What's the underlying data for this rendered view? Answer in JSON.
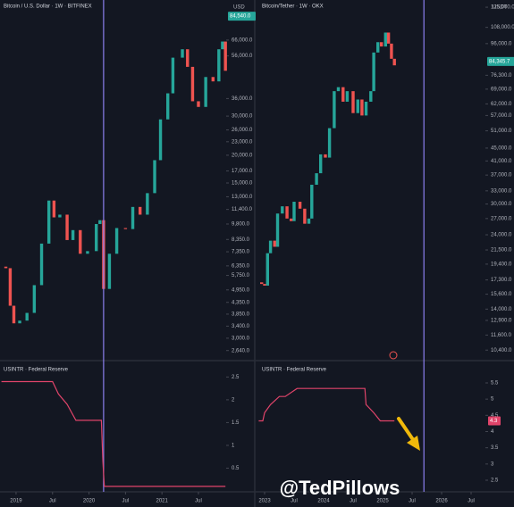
{
  "watermark": "@TedPillows",
  "chart_data": [
    {
      "type": "candlestick",
      "title": "Bitcoin / U.S. Dollar · 1W · BITFINEX",
      "currency": "USD",
      "x": [
        2018.8,
        2018.86,
        2018.92,
        2018.97,
        2019.05,
        2019.15,
        2019.25,
        2019.35,
        2019.45,
        2019.52,
        2019.6,
        2019.7,
        2019.78,
        2019.88,
        2019.98,
        2020.1,
        2020.15,
        2020.2,
        2020.28,
        2020.38,
        2020.5,
        2020.6,
        2020.7,
        2020.8,
        2020.9,
        2020.98,
        2021.08,
        2021.15,
        2021.28,
        2021.35,
        2021.42,
        2021.5,
        2021.6,
        2021.7,
        2021.78,
        2021.83,
        2021.87
      ],
      "values": [
        6300,
        6200,
        4200,
        3500,
        3600,
        3900,
        5200,
        8000,
        12500,
        10500,
        10800,
        8300,
        9200,
        7200,
        7400,
        9800,
        10200,
        5000,
        7200,
        9400,
        9300,
        11700,
        10800,
        13500,
        19000,
        29000,
        38000,
        55000,
        60000,
        50000,
        35000,
        33000,
        45000,
        43000,
        60000,
        65000,
        48000
      ],
      "up_color": "#26a69a",
      "down_color": "#ef5350",
      "log_scale": true,
      "xlim": [
        2018.78,
        2021.88
      ],
      "ylim": [
        2400,
        100000
      ],
      "yticks": [
        {
          "value": 66000,
          "label": "66,000.0"
        },
        {
          "value": 56000,
          "label": "56,000.0"
        },
        {
          "value": 36000,
          "label": "36,000.0"
        },
        {
          "value": 30000,
          "label": "30,000.0"
        },
        {
          "value": 26000,
          "label": "26,000.0"
        },
        {
          "value": 23000,
          "label": "23,000.0"
        },
        {
          "value": 20000,
          "label": "20,000.0"
        },
        {
          "value": 17000,
          "label": "17,000.0"
        },
        {
          "value": 15000,
          "label": "15,000.0"
        },
        {
          "value": 13000,
          "label": "13,000.0"
        },
        {
          "value": 11400,
          "label": "11,400.0"
        },
        {
          "value": 9800,
          "label": "9,800.0"
        },
        {
          "value": 8350,
          "label": "8,350.0"
        },
        {
          "value": 7350,
          "label": "7,350.0"
        },
        {
          "value": 6350,
          "label": "6,350.0"
        },
        {
          "value": 5750,
          "label": "5,750.0"
        },
        {
          "value": 4950,
          "label": "4,950.0"
        },
        {
          "value": 4350,
          "label": "4,350.0"
        },
        {
          "value": 3850,
          "label": "3,850.0"
        },
        {
          "value": 3400,
          "label": "3,400.0"
        },
        {
          "value": 3000,
          "label": "3,000.0"
        },
        {
          "value": 2640,
          "label": "2,640.0"
        }
      ],
      "last_price": 84540,
      "last_price_label": "84,540.0",
      "vline_x": 2020.2,
      "vline_color": "#8c80f0"
    },
    {
      "type": "line",
      "title": "USINTR · Federal Reserve",
      "x": [
        2018.8,
        2019.5,
        2019.58,
        2019.7,
        2019.82,
        2020.17,
        2020.19,
        2020.21,
        2021.87
      ],
      "values": [
        2.4,
        2.4,
        2.13,
        1.9,
        1.55,
        1.55,
        0.65,
        0.1,
        0.1
      ],
      "color": "#e0446a",
      "xlim": [
        2018.78,
        2021.88
      ],
      "ylim": [
        0,
        2.84
      ],
      "yticks": [
        0.5,
        1,
        1.5,
        2,
        2.5
      ],
      "xticks": [
        2019,
        {
          "value": 2019.5,
          "label": "Jul"
        },
        2020,
        {
          "value": 2020.5,
          "label": "Jul"
        },
        2021,
        {
          "value": 2021.5,
          "label": "Jul"
        }
      ]
    },
    {
      "type": "candlestick",
      "title": "Bitcoin/Tether · 1W · OKX",
      "currency": "USDT",
      "x": [
        2022.9,
        2022.95,
        2023.0,
        2023.05,
        2023.1,
        2023.17,
        2023.22,
        2023.3,
        2023.38,
        2023.45,
        2023.5,
        2023.6,
        2023.68,
        2023.75,
        2023.8,
        2023.88,
        2023.95,
        2024.03,
        2024.1,
        2024.18,
        2024.25,
        2024.33,
        2024.4,
        2024.5,
        2024.58,
        2024.65,
        2024.72,
        2024.8,
        2024.85,
        2024.92,
        2024.98,
        2025.05,
        2025.1,
        2025.15,
        2025.2
      ],
      "values": [
        17000,
        16800,
        16600,
        21000,
        23000,
        22000,
        28000,
        29500,
        27000,
        26500,
        30500,
        29000,
        26000,
        27000,
        34500,
        37500,
        43000,
        42000,
        52000,
        68000,
        70000,
        63000,
        68000,
        58000,
        64000,
        57000,
        63000,
        68000,
        90000,
        97000,
        94000,
        104000,
        96000,
        86000,
        82000
      ],
      "up_color": "#26a69a",
      "down_color": "#ef5350",
      "log_scale": true,
      "xlim": [
        2022.894,
        2026.742
      ],
      "ylim": [
        9700,
        131700
      ],
      "yticks": [
        {
          "value": 125000,
          "label": "125,000.0"
        },
        {
          "value": 108000,
          "label": "108,000.0"
        },
        {
          "value": 96000,
          "label": "96,000.0"
        },
        {
          "value": 76300,
          "label": "76,300.0"
        },
        {
          "value": 69000,
          "label": "69,000.0"
        },
        {
          "value": 62000,
          "label": "62,000.0"
        },
        {
          "value": 57000,
          "label": "57,000.0"
        },
        {
          "value": 51000,
          "label": "51,000.0"
        },
        {
          "value": 45000,
          "label": "45,000.0"
        },
        {
          "value": 41000,
          "label": "41,000.0"
        },
        {
          "value": 37000,
          "label": "37,000.0"
        },
        {
          "value": 33000,
          "label": "33,000.0"
        },
        {
          "value": 30000,
          "label": "30,000.0"
        },
        {
          "value": 27000,
          "label": "27,000.0"
        },
        {
          "value": 24000,
          "label": "24,000.0"
        },
        {
          "value": 21500,
          "label": "21,500.0"
        },
        {
          "value": 19400,
          "label": "19,400.0"
        },
        {
          "value": 17300,
          "label": "17,300.0"
        },
        {
          "value": 15600,
          "label": "15,600.0"
        },
        {
          "value": 14000,
          "label": "14,000.0"
        },
        {
          "value": 12900,
          "label": "12,900.0"
        },
        {
          "value": 11600,
          "label": "11,600.0"
        },
        {
          "value": 10400,
          "label": "10,400.0"
        }
      ],
      "last_price": 84345.7,
      "last_price_label": "84,345.7",
      "vline_x": 2025.7,
      "vline_color": "#8c80f0"
    },
    {
      "type": "line",
      "title": "USINTR · Federal Reserve",
      "x": [
        2022.9,
        2022.97,
        2023.0,
        2023.1,
        2023.25,
        2023.35,
        2023.55,
        2024.7,
        2024.72,
        2024.85,
        2024.96,
        2025.2
      ],
      "values": [
        4.33,
        4.33,
        4.58,
        4.83,
        5.08,
        5.08,
        5.33,
        5.33,
        4.83,
        4.58,
        4.33,
        4.33
      ],
      "color": "#e0446a",
      "xlim": [
        2022.894,
        2026.742
      ],
      "ylim": [
        2.17,
        6.16
      ],
      "yticks": [
        2.5,
        3,
        3.5,
        4,
        4.5,
        5,
        5.5
      ],
      "last_value": 4.33,
      "last_value_label": "4.3",
      "xticks": [
        2023,
        {
          "value": 2023.5,
          "label": "Jul"
        },
        2024,
        {
          "value": 2024.5,
          "label": "Jul"
        },
        2025,
        {
          "value": 2025.5,
          "label": "Jul"
        },
        2026,
        {
          "value": 2026.5,
          "label": "Jul"
        }
      ]
    }
  ]
}
